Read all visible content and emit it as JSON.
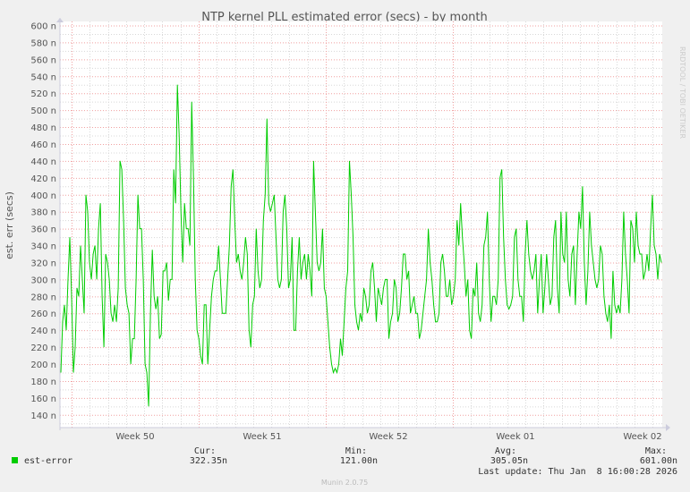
{
  "chart_data": {
    "type": "line",
    "title": "NTP kernel PLL estimated error (secs) - by month",
    "ylabel": "est. err (secs)",
    "xlabel": "",
    "ylim": [
      125,
      600
    ],
    "yticks": [
      140,
      160,
      180,
      200,
      220,
      240,
      260,
      280,
      300,
      320,
      340,
      360,
      380,
      400,
      420,
      440,
      460,
      480,
      500,
      520,
      540,
      560,
      580,
      600
    ],
    "ytick_suffix": " n",
    "xticks": [
      "Week 50",
      "Week 51",
      "Week 52",
      "Week 01",
      "Week 02"
    ],
    "grid": true,
    "series": [
      {
        "name": "est-error",
        "color": "#00cc00",
        "values": [
          190,
          250,
          270,
          240,
          300,
          350,
          280,
          190,
          220,
          290,
          280,
          340,
          300,
          260,
          400,
          380,
          320,
          300,
          330,
          340,
          300,
          360,
          390,
          280,
          220,
          330,
          320,
          300,
          260,
          250,
          270,
          250,
          290,
          440,
          430,
          370,
          290,
          270,
          260,
          200,
          230,
          230,
          300,
          400,
          360,
          360,
          300,
          200,
          190,
          150,
          260,
          335,
          280,
          265,
          280,
          230,
          235,
          310,
          310,
          320,
          275,
          300,
          300,
          430,
          390,
          530,
          470,
          380,
          320,
          390,
          360,
          360,
          340,
          510,
          420,
          300,
          240,
          230,
          210,
          200,
          270,
          270,
          200,
          240,
          280,
          300,
          310,
          310,
          340,
          300,
          260,
          260,
          260,
          300,
          340,
          410,
          430,
          370,
          320,
          330,
          310,
          300,
          320,
          350,
          330,
          240,
          220,
          270,
          280,
          360,
          310,
          290,
          300,
          370,
          400,
          490,
          390,
          380,
          390,
          400,
          350,
          300,
          290,
          300,
          380,
          400,
          360,
          290,
          300,
          350,
          240,
          240,
          310,
          350,
          300,
          320,
          330,
          300,
          330,
          310,
          280,
          440,
          380,
          320,
          310,
          320,
          360,
          290,
          280,
          250,
          220,
          200,
          190,
          195,
          190,
          200,
          230,
          210,
          250,
          290,
          310,
          440,
          400,
          350,
          270,
          250,
          240,
          260,
          250,
          290,
          280,
          260,
          270,
          310,
          320,
          290,
          250,
          290,
          280,
          270,
          290,
          300,
          300,
          230,
          250,
          260,
          300,
          290,
          250,
          260,
          290,
          330,
          330,
          300,
          310,
          260,
          270,
          280,
          260,
          260,
          230,
          240,
          260,
          280,
          300,
          360,
          320,
          300,
          270,
          250,
          250,
          260,
          320,
          330,
          310,
          280,
          280,
          300,
          270,
          280,
          300,
          370,
          340,
          390,
          350,
          320,
          280,
          300,
          240,
          230,
          290,
          280,
          320,
          260,
          250,
          270,
          340,
          350,
          380,
          300,
          250,
          280,
          280,
          270,
          300,
          420,
          430,
          350,
          300,
          270,
          265,
          270,
          280,
          350,
          360,
          300,
          280,
          280,
          250,
          330,
          370,
          330,
          310,
          300,
          310,
          330,
          260,
          300,
          330,
          260,
          290,
          330,
          300,
          270,
          280,
          350,
          370,
          290,
          260,
          380,
          330,
          320,
          380,
          300,
          280,
          330,
          340,
          270,
          330,
          380,
          360,
          410,
          320,
          270,
          310,
          380,
          340,
          320,
          300,
          290,
          300,
          340,
          330,
          280,
          260,
          250,
          270,
          230,
          310,
          270,
          260,
          270,
          260,
          300,
          380,
          330,
          300,
          260,
          370,
          360,
          320,
          380,
          340,
          330,
          330,
          300,
          310,
          330,
          310,
          360,
          400,
          340,
          330,
          300,
          330,
          320
        ]
      }
    ]
  },
  "legend": {
    "series_label": "est-error",
    "color": "#00cc00",
    "cur_label": "Cur:",
    "min_label": "Min:",
    "avg_label": "Avg:",
    "max_label": "Max:",
    "cur": "322.35n",
    "min": "121.00n",
    "avg": "305.05n",
    "max": "601.00n",
    "last_update": "Last update: Thu Jan  8 16:00:28 2026"
  },
  "watermark": "RRDTOOL / TOBI OETIKER",
  "footer": "Munin 2.0.75"
}
